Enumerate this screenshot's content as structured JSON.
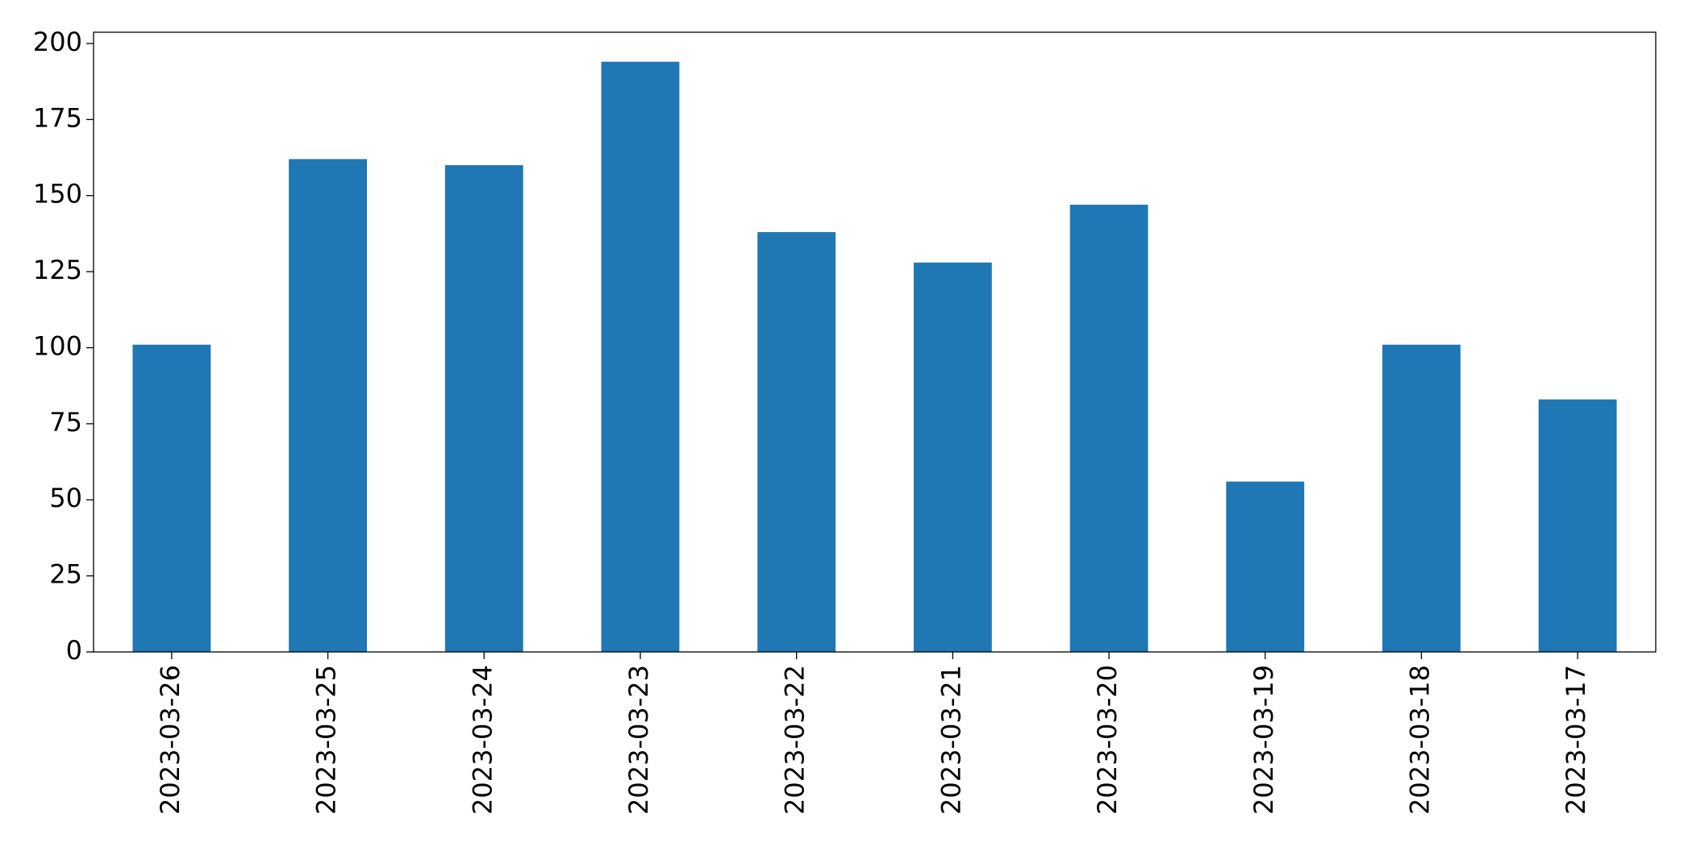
{
  "chart_data": {
    "type": "bar",
    "categories": [
      "2023-03-26",
      "2023-03-25",
      "2023-03-24",
      "2023-03-23",
      "2023-03-22",
      "2023-03-21",
      "2023-03-20",
      "2023-03-19",
      "2023-03-18",
      "2023-03-17"
    ],
    "values": [
      101,
      162,
      160,
      194,
      138,
      128,
      147,
      56,
      101,
      83
    ],
    "color": "#1f77b4",
    "ylim": [
      0,
      203.7
    ],
    "yticks": [
      0,
      25,
      50,
      75,
      100,
      125,
      150,
      175,
      200
    ],
    "grid": false
  }
}
